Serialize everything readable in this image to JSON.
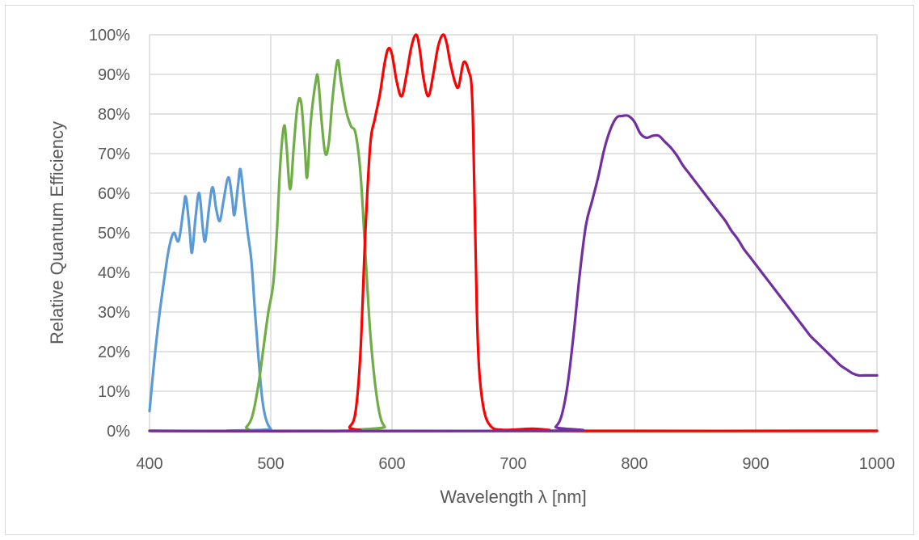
{
  "chart_data": {
    "type": "line",
    "xlabel": "Wavelength λ [nm]",
    "ylabel": "Relative Quantum Efficiency",
    "xlim": [
      400,
      1000
    ],
    "ylim": [
      0,
      100
    ],
    "x_ticks": [
      "400",
      "500",
      "600",
      "700",
      "800",
      "900",
      "1000"
    ],
    "y_ticks": [
      "0%",
      "10%",
      "20%",
      "30%",
      "40%",
      "50%",
      "60%",
      "70%",
      "80%",
      "90%",
      "100%"
    ],
    "grid": true,
    "legend": "none",
    "series": [
      {
        "color": "#5b9bd5",
        "points": [
          [
            400,
            5
          ],
          [
            404,
            18
          ],
          [
            408,
            29
          ],
          [
            412,
            38
          ],
          [
            416,
            46
          ],
          [
            420,
            50
          ],
          [
            424,
            48
          ],
          [
            428,
            56
          ],
          [
            430,
            59
          ],
          [
            433,
            51
          ],
          [
            435,
            45
          ],
          [
            438,
            54
          ],
          [
            441,
            60
          ],
          [
            444,
            51
          ],
          [
            446,
            48
          ],
          [
            449,
            56
          ],
          [
            452,
            61.5
          ],
          [
            455,
            56
          ],
          [
            458,
            53
          ],
          [
            461,
            58
          ],
          [
            465,
            64
          ],
          [
            468,
            59
          ],
          [
            470,
            54.5
          ],
          [
            473,
            62
          ],
          [
            475,
            66
          ],
          [
            478,
            58
          ],
          [
            481,
            50
          ],
          [
            484,
            43
          ],
          [
            487,
            30
          ],
          [
            490,
            18
          ],
          [
            493,
            8
          ],
          [
            496,
            3
          ],
          [
            500,
            0.5
          ],
          [
            505,
            0
          ],
          [
            1000,
            0
          ]
        ]
      },
      {
        "color": "#70ad47",
        "points": [
          [
            400,
            0
          ],
          [
            475,
            0
          ],
          [
            480,
            1
          ],
          [
            485,
            4
          ],
          [
            490,
            12
          ],
          [
            494,
            21
          ],
          [
            498,
            30
          ],
          [
            502,
            37
          ],
          [
            505,
            50
          ],
          [
            508,
            68
          ],
          [
            511,
            77
          ],
          [
            513,
            72
          ],
          [
            516,
            61
          ],
          [
            519,
            72
          ],
          [
            522,
            82
          ],
          [
            525,
            83
          ],
          [
            528,
            72
          ],
          [
            530,
            64
          ],
          [
            533,
            78
          ],
          [
            537,
            88
          ],
          [
            539,
            89
          ],
          [
            542,
            78
          ],
          [
            545,
            70
          ],
          [
            548,
            73
          ],
          [
            551,
            84
          ],
          [
            555,
            93.5
          ],
          [
            558,
            88
          ],
          [
            562,
            81
          ],
          [
            566,
            77
          ],
          [
            570,
            75
          ],
          [
            574,
            65
          ],
          [
            578,
            45
          ],
          [
            582,
            25
          ],
          [
            586,
            12
          ],
          [
            590,
            4
          ],
          [
            594,
            1
          ],
          [
            598,
            0
          ],
          [
            1000,
            0
          ]
        ]
      },
      {
        "color": "#ff0000",
        "points": [
          [
            400,
            0
          ],
          [
            560,
            0
          ],
          [
            565,
            1
          ],
          [
            570,
            5
          ],
          [
            574,
            20
          ],
          [
            578,
            50
          ],
          [
            582,
            72
          ],
          [
            586,
            79
          ],
          [
            590,
            85
          ],
          [
            594,
            93
          ],
          [
            597,
            96.5
          ],
          [
            600,
            95
          ],
          [
            604,
            88
          ],
          [
            608,
            84.5
          ],
          [
            612,
            90
          ],
          [
            616,
            97
          ],
          [
            620,
            100
          ],
          [
            623,
            96
          ],
          [
            626,
            89
          ],
          [
            630,
            84.5
          ],
          [
            634,
            90
          ],
          [
            638,
            97
          ],
          [
            642,
            100
          ],
          [
            645,
            98
          ],
          [
            648,
            93
          ],
          [
            652,
            88
          ],
          [
            655,
            87
          ],
          [
            659,
            93
          ],
          [
            663,
            91
          ],
          [
            666,
            85
          ],
          [
            668,
            60
          ],
          [
            670,
            30
          ],
          [
            672,
            15
          ],
          [
            676,
            5
          ],
          [
            682,
            1
          ],
          [
            690,
            0.3
          ],
          [
            700,
            0.3
          ],
          [
            710,
            0.5
          ],
          [
            720,
            0.5
          ],
          [
            730,
            0.2
          ],
          [
            740,
            0
          ],
          [
            1000,
            0
          ]
        ]
      },
      {
        "color": "#7030a0",
        "points": [
          [
            400,
            0
          ],
          [
            730,
            0
          ],
          [
            735,
            1
          ],
          [
            740,
            4
          ],
          [
            745,
            12
          ],
          [
            750,
            25
          ],
          [
            755,
            40
          ],
          [
            760,
            52
          ],
          [
            765,
            58
          ],
          [
            770,
            64
          ],
          [
            775,
            71
          ],
          [
            780,
            76
          ],
          [
            785,
            79
          ],
          [
            790,
            79.5
          ],
          [
            795,
            79.5
          ],
          [
            800,
            78
          ],
          [
            805,
            75
          ],
          [
            810,
            74
          ],
          [
            815,
            74.5
          ],
          [
            820,
            74.5
          ],
          [
            825,
            73
          ],
          [
            830,
            71.5
          ],
          [
            835,
            69.5
          ],
          [
            840,
            67
          ],
          [
            845,
            65
          ],
          [
            850,
            63
          ],
          [
            855,
            61
          ],
          [
            860,
            59
          ],
          [
            865,
            57
          ],
          [
            870,
            55
          ],
          [
            875,
            53
          ],
          [
            880,
            50.5
          ],
          [
            885,
            48.5
          ],
          [
            890,
            46
          ],
          [
            895,
            44
          ],
          [
            900,
            42
          ],
          [
            905,
            40
          ],
          [
            910,
            38
          ],
          [
            915,
            36
          ],
          [
            920,
            34
          ],
          [
            925,
            32
          ],
          [
            930,
            30
          ],
          [
            935,
            28
          ],
          [
            940,
            26
          ],
          [
            945,
            24
          ],
          [
            950,
            22.5
          ],
          [
            955,
            21
          ],
          [
            960,
            19.5
          ],
          [
            965,
            18
          ],
          [
            970,
            16.5
          ],
          [
            975,
            15.5
          ],
          [
            980,
            14.5
          ],
          [
            985,
            14
          ],
          [
            990,
            14
          ],
          [
            1000,
            14
          ]
        ]
      }
    ]
  }
}
